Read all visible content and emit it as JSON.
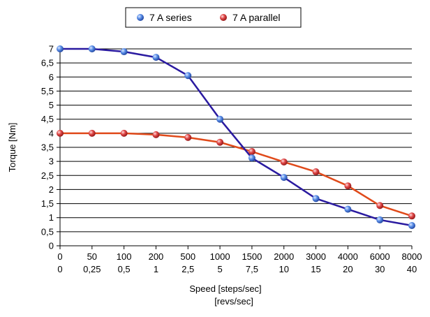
{
  "chart_data": {
    "type": "line",
    "xlabel": "Speed [steps/sec]",
    "xlabel2": "[revs/sec]",
    "ylabel": "Torque [Nm]",
    "ylim": [
      0,
      7
    ],
    "yticks": [
      "0",
      "0,5",
      "1",
      "1,5",
      "2",
      "2,5",
      "3",
      "3,5",
      "4",
      "4,5",
      "5",
      "5,5",
      "6",
      "6,5",
      "7"
    ],
    "categories": [
      "0",
      "50",
      "100",
      "200",
      "500",
      "1000",
      "1500",
      "2000",
      "3000",
      "4000",
      "6000",
      "8000"
    ],
    "categories2": [
      "0",
      "0,25",
      "0,5",
      "1",
      "2,5",
      "5",
      "7,5",
      "10",
      "15",
      "20",
      "30",
      "40"
    ],
    "grid": true,
    "legend_position": "top-center",
    "series": [
      {
        "name": "7 A series",
        "color": "#2a1aa0",
        "marker_color": "#3b6fd6",
        "values": [
          7.0,
          7.0,
          6.9,
          6.7,
          6.05,
          4.5,
          3.12,
          2.43,
          1.68,
          1.3,
          0.92,
          0.72
        ]
      },
      {
        "name": "7 A parallel",
        "color": "#e04a1a",
        "marker_color": "#d42b2b",
        "values": [
          4.0,
          4.0,
          4.0,
          3.95,
          3.85,
          3.68,
          3.35,
          2.98,
          2.63,
          2.13,
          1.43,
          1.06
        ]
      }
    ]
  }
}
